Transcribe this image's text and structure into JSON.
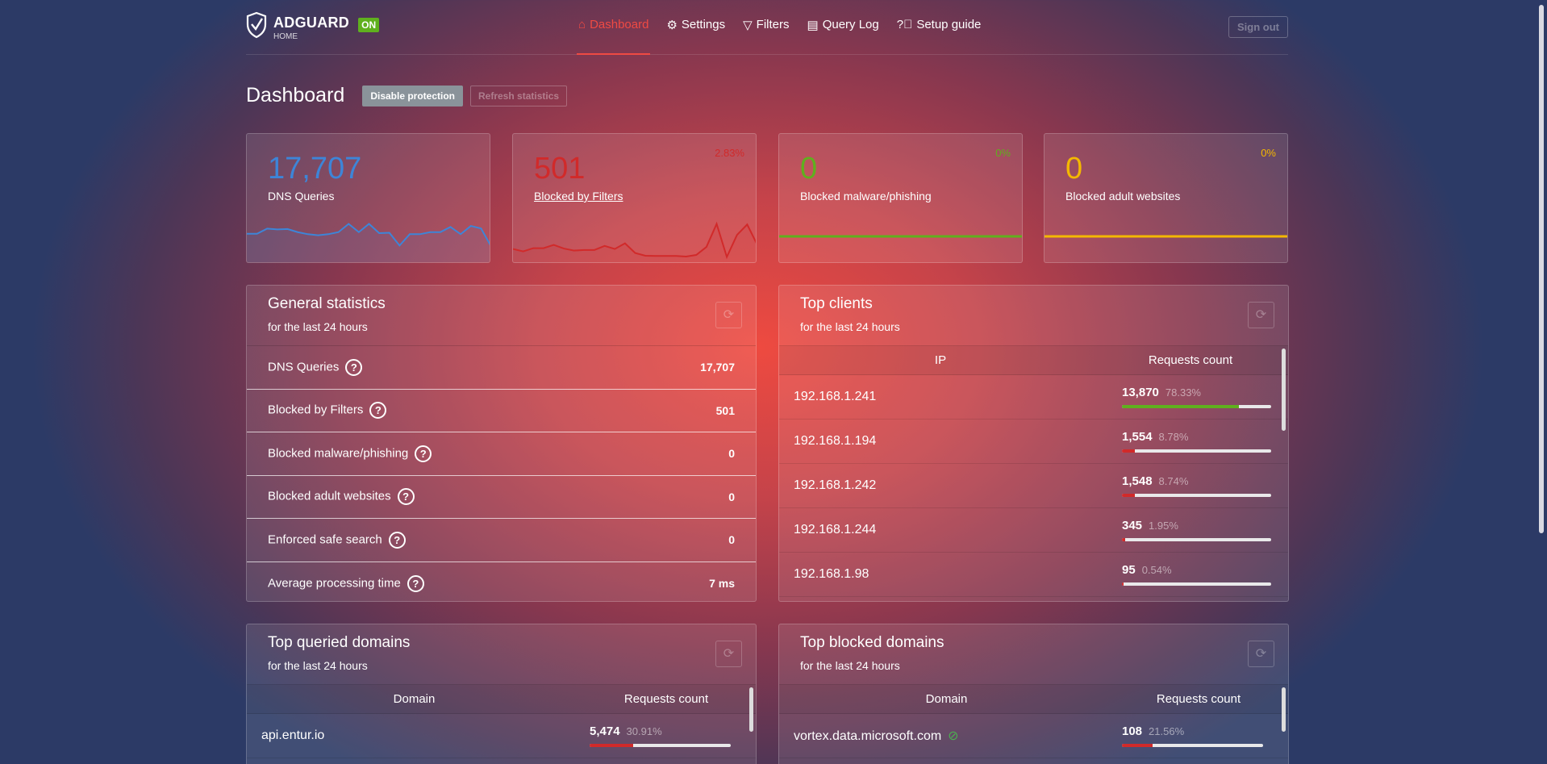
{
  "header": {
    "brand": "ADGUARD",
    "brand_sub": "HOME",
    "status_badge": "ON",
    "nav": [
      {
        "label": "Dashboard",
        "icon": "home-icon",
        "active": true
      },
      {
        "label": "Settings",
        "icon": "gear-icon"
      },
      {
        "label": "Filters",
        "icon": "filter-icon"
      },
      {
        "label": "Query Log",
        "icon": "document-icon"
      },
      {
        "label": "Setup guide",
        "icon": "question-icon"
      }
    ],
    "sign_out": "Sign out"
  },
  "page": {
    "title": "Dashboard",
    "disable_protection": "Disable protection",
    "refresh_statistics": "Refresh statistics"
  },
  "colors": {
    "blue": "#3d85d8",
    "red": "#d12a2a",
    "green": "#5fb01e",
    "yellow": "#f4b800",
    "accent": "#ef4a43"
  },
  "stats": [
    {
      "value": "17,707",
      "label": "DNS Queries",
      "percent": "",
      "color": "#3d85d8",
      "sparkline": [
        122,
        122,
        147,
        143,
        145,
        130,
        120,
        115,
        120,
        130,
        170,
        130,
        170,
        125,
        127,
        65,
        120,
        120,
        130,
        130,
        155,
        120,
        160,
        148,
        60
      ]
    },
    {
      "value": "501",
      "label": "Blocked by Filters",
      "percent": "2.83%",
      "color": "#d12a2a",
      "sparkline": [
        50,
        38,
        54,
        54,
        70,
        52,
        42,
        45,
        45,
        65,
        50,
        78,
        30,
        16,
        15,
        15,
        15,
        12,
        20,
        60,
        175,
        10,
        120,
        172,
        70
      ]
    },
    {
      "value": "0",
      "label": "Blocked malware/phishing",
      "percent": "0%",
      "color": "#5fb01e",
      "sparkline": [
        0,
        0
      ]
    },
    {
      "value": "0",
      "label": "Blocked adult websites",
      "percent": "0%",
      "color": "#f4b800",
      "sparkline": [
        0,
        0
      ]
    }
  ],
  "general": {
    "title": "General statistics",
    "subtitle": "for the last 24 hours",
    "rows": [
      {
        "label": "DNS Queries",
        "value": "17,707"
      },
      {
        "label": "Blocked by Filters",
        "value": "501"
      },
      {
        "label": "Blocked malware/phishing",
        "value": "0"
      },
      {
        "label": "Blocked adult websites",
        "value": "0"
      },
      {
        "label": "Enforced safe search",
        "value": "0"
      },
      {
        "label": "Average processing time",
        "value": "7 ms"
      }
    ]
  },
  "clients": {
    "title": "Top clients",
    "subtitle": "for the last 24 hours",
    "col1": "IP",
    "col2": "Requests count",
    "rows": [
      {
        "ip": "192.168.1.241",
        "count": "13,870",
        "pct": "78.33%",
        "fill": 78.33,
        "color": "#5fb01e"
      },
      {
        "ip": "192.168.1.194",
        "count": "1,554",
        "pct": "8.78%",
        "fill": 8.78,
        "color": "#d12a2a"
      },
      {
        "ip": "192.168.1.242",
        "count": "1,548",
        "pct": "8.74%",
        "fill": 8.74,
        "color": "#d12a2a"
      },
      {
        "ip": "192.168.1.244",
        "count": "345",
        "pct": "1.95%",
        "fill": 1.95,
        "color": "#d12a2a"
      },
      {
        "ip": "192.168.1.98",
        "count": "95",
        "pct": "0.54%",
        "fill": 0.54,
        "color": "#d12a2a"
      }
    ]
  },
  "queried": {
    "title": "Top queried domains",
    "subtitle": "for the last 24 hours",
    "col1": "Domain",
    "col2": "Requests count",
    "rows": [
      {
        "domain": "api.entur.io",
        "count": "5,474",
        "pct": "30.91%",
        "fill": 30.91,
        "color": "#d12a2a"
      }
    ]
  },
  "blocked": {
    "title": "Top blocked domains",
    "subtitle": "for the last 24 hours",
    "col1": "Domain",
    "col2": "Requests count",
    "rows": [
      {
        "domain": "vortex.data.microsoft.com",
        "count": "108",
        "pct": "21.56%",
        "fill": 21.56,
        "color": "#d12a2a",
        "icon": "eye-slash-icon"
      }
    ]
  }
}
